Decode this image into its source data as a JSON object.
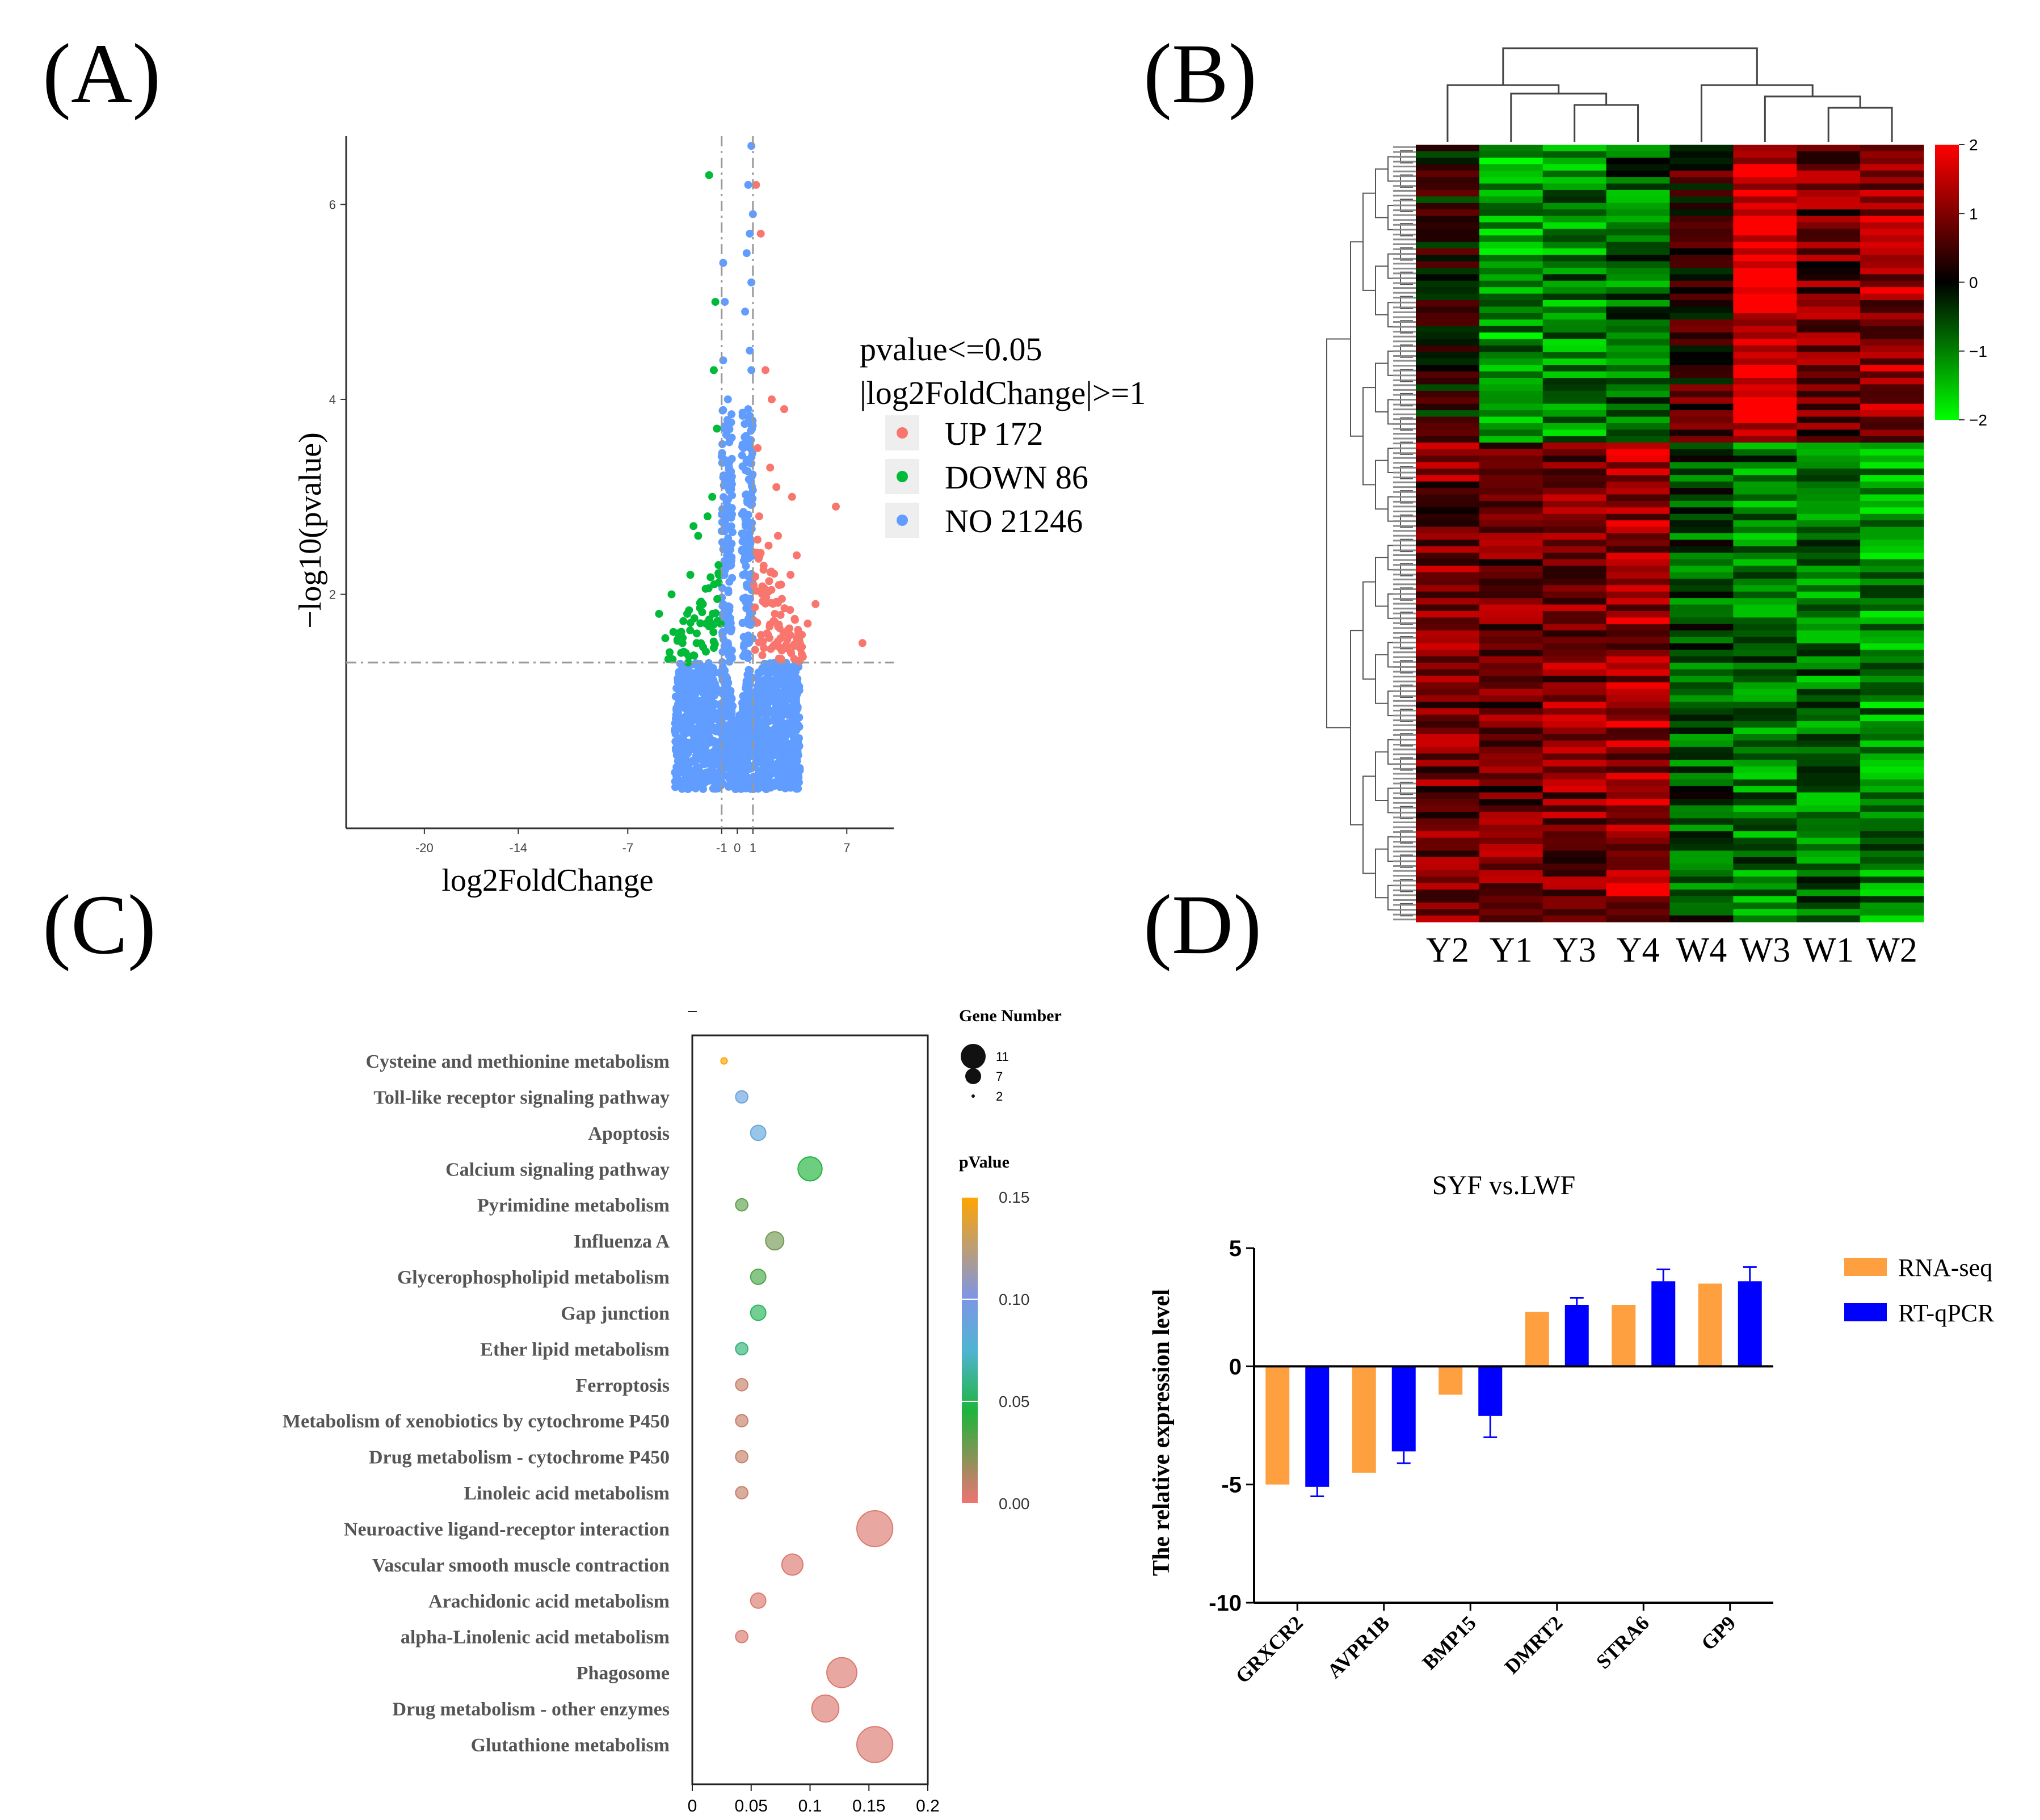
{
  "panel_labels": [
    "(A)",
    "(B)",
    "(C)",
    "(D)"
  ],
  "colors": {
    "up": "#F8766D",
    "down": "#00BA38",
    "no": "#619CFF",
    "rna": "#FFA040",
    "rtq": "#0000FF",
    "heat_high": "#FF0000",
    "heat_mid": "#000000",
    "heat_low": "#00FF00"
  },
  "chart_data": [
    {
      "id": "A",
      "type": "scatter",
      "title": "",
      "xlabel": "log2FoldChange",
      "ylabel": "−log10(pvalue)",
      "xlim": [
        -25,
        10
      ],
      "ylim": [
        -0.4,
        6.7
      ],
      "x_ticks": [
        -20,
        -14,
        -7,
        -1,
        0,
        1,
        7
      ],
      "y_ticks": [
        2,
        4,
        6
      ],
      "thresholds": {
        "x": [
          -1,
          1
        ],
        "y": 1.3
      },
      "legend": {
        "title_lines": [
          "pvalue<=0.05",
          "|log2FoldChange|>=1"
        ],
        "position": "right",
        "entries": [
          {
            "label": "UP 172",
            "color": "#F8766D"
          },
          {
            "label": "DOWN 86",
            "color": "#00BA38"
          },
          {
            "label": "NO 21246",
            "color": "#619CFF"
          }
        ]
      },
      "series": [
        {
          "name": "UP",
          "points": [
            [
              1.2,
              6.2
            ],
            [
              1.5,
              5.7
            ],
            [
              1.8,
              4.3
            ],
            [
              2.2,
              4.0
            ],
            [
              3.0,
              3.9
            ],
            [
              2.5,
              3.1
            ],
            [
              3.5,
              3.0
            ],
            [
              6.3,
              2.9
            ],
            [
              3.8,
              2.4
            ],
            [
              2.8,
              2.1
            ],
            [
              2.0,
              2.5
            ],
            [
              1.6,
              2.0
            ],
            [
              4.5,
              1.7
            ],
            [
              8.0,
              1.5
            ],
            [
              1.9,
              1.6
            ],
            [
              2.4,
              1.8
            ],
            [
              3.2,
              1.6
            ],
            [
              1.4,
              2.8
            ],
            [
              2.6,
              2.6
            ],
            [
              4.0,
              1.5
            ],
            [
              1.3,
              3.5
            ],
            [
              2.1,
              3.3
            ],
            [
              5.0,
              1.9
            ],
            [
              3.4,
              2.2
            ],
            [
              1.7,
              1.45
            ]
          ]
        },
        {
          "name": "DOWN",
          "points": [
            [
              -1.8,
              6.3
            ],
            [
              -1.5,
              4.3
            ],
            [
              -1.3,
              3.7
            ],
            [
              -1.4,
              5.0
            ],
            [
              -1.6,
              3.0
            ],
            [
              -2.5,
              2.6
            ],
            [
              -3.0,
              2.2
            ],
            [
              -4.2,
              2.0
            ],
            [
              -5.0,
              1.8
            ],
            [
              -3.5,
              1.5
            ],
            [
              -2.0,
              1.7
            ],
            [
              -2.8,
              2.7
            ],
            [
              -1.2,
              2.3
            ],
            [
              -3.8,
              1.6
            ],
            [
              -1.5,
              1.45
            ],
            [
              -2.2,
              1.9
            ],
            [
              -4.6,
              1.55
            ],
            [
              -1.9,
              2.8
            ],
            [
              -2.6,
              1.5
            ],
            [
              -3.2,
              1.8
            ]
          ]
        },
        {
          "name": "NO",
          "points": [
            [
              0.9,
              6.6
            ],
            [
              0.7,
              6.2
            ],
            [
              1.0,
              5.9
            ],
            [
              0.8,
              5.7
            ],
            [
              0.6,
              5.5
            ],
            [
              -0.9,
              5.4
            ],
            [
              0.9,
              5.2
            ],
            [
              -0.8,
              5.0
            ],
            [
              0.5,
              4.9
            ],
            [
              0.8,
              4.5
            ],
            [
              -0.9,
              4.4
            ],
            [
              0.9,
              4.3
            ],
            [
              -0.6,
              4.0
            ],
            [
              0.7,
              3.9
            ],
            [
              -0.5,
              3.6
            ],
            [
              0.4,
              3.5
            ],
            [
              -0.9,
              3.2
            ],
            [
              0.9,
              3.0
            ],
            [
              -0.7,
              2.7
            ],
            [
              0.8,
              2.5
            ],
            [
              -0.4,
              2.3
            ],
            [
              0.6,
              2.1
            ],
            [
              -0.9,
              1.9
            ],
            [
              0.9,
              1.7
            ],
            [
              -0.6,
              1.5
            ],
            [
              0.5,
              1.4
            ]
          ]
        }
      ],
      "bulk_region": {
        "x_range": [
          -4,
          4
        ],
        "y_range": [
          0,
          1.3
        ]
      }
    },
    {
      "id": "B",
      "type": "heatmap",
      "title": "",
      "columns": [
        "Y2",
        "Y1",
        "Y3",
        "Y4",
        "W4",
        "W3",
        "W1",
        "W2"
      ],
      "n_rows": 258,
      "colorbar": {
        "min": -2,
        "max": 2,
        "ticks": [
          2,
          1,
          0,
          -1,
          -2
        ],
        "colors": [
          "#00FF00",
          "#000000",
          "#FF0000"
        ]
      },
      "column_dendrogram": true,
      "row_dendrogram": true,
      "block_pattern": [
        {
          "rows": "upper cluster",
          "values": [
            0.1,
            -1.2,
            -1.0,
            -0.8,
            0.4,
            1.8,
            0.8,
            1.2
          ]
        },
        {
          "rows": "lower cluster",
          "values": [
            0.9,
            0.8,
            1.0,
            1.2,
            -0.6,
            -0.9,
            -0.9,
            -1.1
          ]
        }
      ]
    },
    {
      "id": "C",
      "type": "scatter",
      "title": "",
      "xlabel": "",
      "ylabel": "",
      "xlim": [
        0,
        0.2
      ],
      "x_ticks": [
        "0",
        "0.05",
        "0.1",
        "0.15",
        "0.2"
      ],
      "categories": [
        "Cysteine and methionine metabolism",
        "Toll-like receptor signaling pathway",
        "Apoptosis",
        "Calcium signaling pathway",
        "Pyrimidine metabolism",
        "Influenza A",
        "Glycerophospholipid metabolism",
        "Gap junction",
        "Ether lipid metabolism",
        "Ferroptosis",
        "Metabolism of xenobiotics by cytochrome P450",
        "Drug metabolism - cytochrome P450",
        "Linoleic acid metabolism",
        "Neuroactive ligand-receptor interaction",
        "Vascular smooth muscle contraction",
        "Arachidonic acid metabolism",
        "alpha-Linolenic acid metabolism",
        "Phagosome",
        "Drug metabolism - other enzymes",
        "Glutathione metabolism"
      ],
      "rich_factor": [
        0.027,
        0.042,
        0.056,
        0.1,
        0.042,
        0.07,
        0.056,
        0.056,
        0.042,
        0.042,
        0.042,
        0.042,
        0.042,
        0.155,
        0.085,
        0.056,
        0.042,
        0.127,
        0.113,
        0.155
      ],
      "gene_number": [
        1,
        3,
        4,
        7,
        3,
        5,
        4,
        4,
        3,
        3,
        3,
        3,
        3,
        11,
        6,
        4,
        3,
        9,
        8,
        11
      ],
      "pvalue": [
        0.15,
        0.09,
        0.085,
        0.05,
        0.035,
        0.03,
        0.04,
        0.055,
        0.06,
        0.01,
        0.01,
        0.01,
        0.01,
        0.005,
        0.005,
        0.005,
        0.005,
        0.005,
        0.005,
        0.005
      ],
      "size_legend": {
        "title": "Gene Number",
        "entries": [
          "11",
          "7",
          "2"
        ]
      },
      "color_legend": {
        "title": "pValue",
        "ticks": [
          "0.15",
          "0.10",
          "0.05",
          "0.00"
        ]
      }
    },
    {
      "id": "D",
      "type": "bar",
      "title": "SYF vs.LWF",
      "xlabel": "",
      "ylabel": "The relative expression level",
      "ylim": [
        -10,
        5
      ],
      "y_ticks": [
        5,
        0,
        -5,
        -10
      ],
      "categories": [
        "GRXCR2",
        "AVPR1B",
        "BMP15",
        "DMRT2",
        "STRA6",
        "GP9"
      ],
      "series": [
        {
          "name": "RNA-seq",
          "values": [
            -5.0,
            -4.5,
            -1.2,
            2.3,
            2.6,
            3.5
          ],
          "errors": [
            0,
            0,
            0,
            0,
            0,
            0
          ]
        },
        {
          "name": "RT-qPCR",
          "values": [
            -5.1,
            -3.6,
            -2.1,
            2.6,
            3.6,
            3.6
          ],
          "errors": [
            0.4,
            0.5,
            0.9,
            0.3,
            0.5,
            0.6
          ]
        }
      ],
      "legend": "right"
    }
  ]
}
